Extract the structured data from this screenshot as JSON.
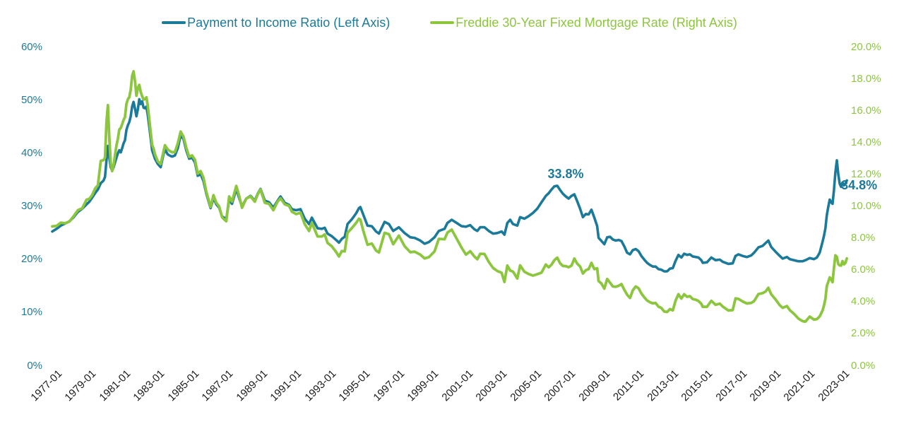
{
  "chart_data": {
    "type": "line",
    "background": "#FFFFFF",
    "grid": false,
    "legend_position": "top",
    "x": [
      "1977-01",
      "1977-04",
      "1977-07",
      "1977-10",
      "1978-01",
      "1978-04",
      "1978-07",
      "1978-10",
      "1979-01",
      "1979-03",
      "1979-05",
      "1979-07",
      "1979-09",
      "1979-11",
      "1980-01",
      "1980-02",
      "1980-03",
      "1980-04",
      "1980-05",
      "1980-06",
      "1980-07",
      "1980-08",
      "1980-09",
      "1980-10",
      "1980-11",
      "1980-12",
      "1981-01",
      "1981-02",
      "1981-03",
      "1981-04",
      "1981-05",
      "1981-06",
      "1981-07",
      "1981-08",
      "1981-09",
      "1981-10",
      "1981-11",
      "1981-12",
      "1982-01",
      "1982-02",
      "1982-03",
      "1982-04",
      "1982-05",
      "1982-06",
      "1982-07",
      "1982-08",
      "1982-09",
      "1982-10",
      "1982-11",
      "1982-12",
      "1983-01",
      "1983-03",
      "1983-05",
      "1983-07",
      "1983-08",
      "1983-10",
      "1983-12",
      "1984-01",
      "1984-03",
      "1984-05",
      "1984-07",
      "1984-09",
      "1984-11",
      "1985-01",
      "1985-03",
      "1985-05",
      "1985-07",
      "1985-09",
      "1985-11",
      "1986-01",
      "1986-04",
      "1986-06",
      "1986-08",
      "1986-10",
      "1986-12",
      "1987-01",
      "1987-03",
      "1987-05",
      "1987-07",
      "1987-10",
      "1987-12",
      "1988-02",
      "1988-05",
      "1988-08",
      "1988-11",
      "1989-01",
      "1989-03",
      "1989-06",
      "1989-09",
      "1989-12",
      "1990-03",
      "1990-05",
      "1990-08",
      "1990-11",
      "1991-01",
      "1991-04",
      "1991-07",
      "1991-10",
      "1992-01",
      "1992-03",
      "1992-07",
      "1992-10",
      "1992-12",
      "1993-02",
      "1993-05",
      "1993-08",
      "1993-10",
      "1993-12",
      "1994-02",
      "1994-04",
      "1994-07",
      "1994-10",
      "1994-12",
      "1995-01",
      "1995-03",
      "1995-06",
      "1995-09",
      "1995-12",
      "1996-02",
      "1996-06",
      "1996-09",
      "1996-12",
      "1997-04",
      "1997-08",
      "1997-12",
      "1998-03",
      "1998-07",
      "1998-10",
      "1999-01",
      "1999-05",
      "1999-08",
      "1999-12",
      "2000-02",
      "2000-05",
      "2000-08",
      "2000-12",
      "2001-03",
      "2001-06",
      "2001-09",
      "2001-11",
      "2002-01",
      "2002-04",
      "2002-07",
      "2002-10",
      "2003-01",
      "2003-04",
      "2003-06",
      "2003-08",
      "2003-10",
      "2003-12",
      "2004-01",
      "2004-03",
      "2004-05",
      "2004-08",
      "2004-11",
      "2005-02",
      "2005-05",
      "2005-08",
      "2005-11",
      "2006-01",
      "2006-03",
      "2006-05",
      "2006-07",
      "2006-09",
      "2006-11",
      "2007-01",
      "2007-03",
      "2007-05",
      "2007-07",
      "2007-09",
      "2007-11",
      "2008-01",
      "2008-03",
      "2008-05",
      "2008-07",
      "2008-09",
      "2008-11",
      "2008-12",
      "2009-02",
      "2009-04",
      "2009-06",
      "2009-08",
      "2009-10",
      "2009-12",
      "2010-02",
      "2010-04",
      "2010-06",
      "2010-08",
      "2010-10",
      "2010-12",
      "2011-02",
      "2011-04",
      "2011-06",
      "2011-08",
      "2011-10",
      "2011-12",
      "2012-02",
      "2012-04",
      "2012-06",
      "2012-08",
      "2012-10",
      "2012-12",
      "2013-02",
      "2013-04",
      "2013-06",
      "2013-08",
      "2013-10",
      "2013-12",
      "2014-02",
      "2014-04",
      "2014-06",
      "2014-08",
      "2014-10",
      "2014-12",
      "2015-01",
      "2015-04",
      "2015-07",
      "2015-10",
      "2016-01",
      "2016-03",
      "2016-07",
      "2016-10",
      "2016-12",
      "2017-02",
      "2017-05",
      "2017-08",
      "2017-11",
      "2018-01",
      "2018-04",
      "2018-07",
      "2018-09",
      "2018-11",
      "2019-01",
      "2019-04",
      "2019-07",
      "2019-09",
      "2019-12",
      "2020-02",
      "2020-05",
      "2020-08",
      "2020-11",
      "2021-01",
      "2021-04",
      "2021-07",
      "2021-09",
      "2021-11",
      "2022-01",
      "2022-02",
      "2022-03",
      "2022-04",
      "2022-05",
      "2022-06",
      "2022-07",
      "2022-08",
      "2022-09",
      "2022-10",
      "2022-11",
      "2022-12",
      "2023-01",
      "2023-02",
      "2023-03",
      "2023-04",
      "2023-05",
      "2023-06"
    ],
    "series": [
      {
        "name": "Payment to Income Ratio (Left Axis)",
        "axis": "left",
        "color": "#1B7A99",
        "values": [
          25.2,
          25.7,
          26.3,
          26.7,
          27.1,
          27.9,
          28.9,
          29.5,
          30.3,
          30.8,
          31.6,
          32.4,
          33.1,
          34.3,
          34.8,
          35.5,
          38.6,
          41.3,
          39.1,
          37.3,
          36.7,
          37.3,
          38.2,
          39.1,
          39.9,
          40.5,
          40.1,
          40.9,
          41.8,
          42.4,
          44.3,
          45.2,
          45.8,
          46.9,
          48.7,
          49.6,
          48.3,
          46.9,
          48.2,
          50.1,
          49.2,
          49.7,
          48.5,
          48.4,
          48.7,
          47.1,
          44.9,
          42.7,
          40.5,
          39.7,
          38.9,
          37.9,
          37.3,
          39.8,
          40.6,
          39.7,
          39.4,
          39.3,
          39.5,
          40.9,
          43.3,
          42.6,
          40.4,
          38.9,
          39.1,
          38.2,
          35.7,
          36.0,
          34.7,
          32.3,
          29.6,
          31.5,
          30.3,
          29.7,
          28.0,
          27.9,
          27.5,
          31.2,
          30.4,
          33.2,
          31.5,
          29.9,
          31.4,
          31.9,
          31.0,
          32.3,
          33.2,
          31.0,
          30.7,
          29.7,
          31.0,
          31.8,
          30.6,
          30.2,
          29.4,
          29.2,
          29.4,
          27.6,
          26.6,
          27.8,
          25.8,
          25.7,
          25.9,
          24.8,
          24.3,
          23.6,
          23.1,
          23.8,
          24.2,
          26.6,
          27.5,
          28.6,
          29.6,
          29.8,
          28.4,
          26.3,
          26.2,
          25.2,
          24.8,
          27.0,
          26.6,
          25.3,
          26.0,
          24.9,
          24.1,
          24.0,
          23.5,
          22.9,
          23.2,
          24.1,
          25.3,
          25.7,
          26.8,
          27.4,
          26.9,
          26.2,
          26.1,
          26.4,
          25.6,
          25.3,
          26.0,
          26.0,
          25.3,
          24.8,
          24.9,
          25.2,
          24.6,
          26.8,
          27.4,
          26.6,
          26.5,
          26.3,
          27.9,
          27.6,
          28.1,
          28.7,
          29.5,
          30.7,
          31.9,
          32.4,
          33.1,
          33.7,
          33.8,
          33.0,
          32.3,
          31.8,
          31.4,
          31.9,
          32.2,
          30.9,
          29.5,
          27.9,
          28.5,
          28.4,
          29.3,
          27.8,
          26.2,
          24.0,
          23.4,
          22.8,
          24.1,
          24.2,
          23.7,
          23.5,
          23.6,
          23.4,
          22.4,
          21.2,
          20.9,
          21.7,
          21.9,
          21.5,
          20.6,
          19.9,
          19.3,
          18.9,
          18.6,
          18.6,
          18.1,
          18.0,
          17.7,
          17.7,
          18.2,
          18.3,
          19.7,
          20.8,
          20.3,
          21.0,
          20.8,
          20.9,
          20.5,
          20.4,
          20.3,
          19.8,
          19.3,
          19.4,
          20.3,
          19.8,
          19.9,
          19.5,
          19.1,
          19.2,
          20.6,
          20.9,
          20.6,
          20.4,
          20.7,
          21.2,
          22.2,
          22.5,
          23.0,
          23.5,
          22.3,
          21.4,
          20.6,
          20.1,
          20.4,
          20.0,
          19.8,
          19.6,
          19.6,
          19.8,
          20.2,
          20.0,
          20.3,
          21.2,
          23.3,
          24.4,
          25.8,
          28.3,
          29.8,
          31.2,
          30.7,
          30.4,
          33.0,
          36.3,
          38.6,
          36.0,
          34.2,
          33.6,
          34.4,
          33.9,
          34.2,
          34.8
        ]
      },
      {
        "name": "Freddie 30-Year Fixed Mortgage Rate (Right Axis)",
        "axis": "right",
        "color": "#8CC63E",
        "values": [
          8.72,
          8.75,
          8.95,
          8.92,
          9.02,
          9.36,
          9.74,
          9.86,
          10.39,
          10.45,
          10.69,
          11.09,
          11.3,
          12.83,
          12.88,
          13.04,
          15.28,
          16.33,
          14.26,
          12.71,
          12.19,
          12.56,
          13.2,
          13.79,
          14.21,
          14.79,
          14.9,
          15.13,
          15.4,
          15.58,
          16.4,
          16.7,
          16.83,
          17.29,
          18.16,
          18.45,
          17.82,
          16.92,
          17.4,
          17.6,
          17.16,
          16.89,
          16.68,
          16.7,
          16.82,
          16.27,
          15.43,
          14.61,
          13.83,
          13.62,
          13.25,
          12.8,
          12.63,
          13.43,
          13.81,
          13.54,
          13.42,
          13.37,
          13.39,
          13.94,
          14.67,
          14.35,
          13.64,
          13.08,
          13.17,
          12.91,
          12.03,
          12.19,
          11.78,
          10.88,
          9.94,
          10.68,
          10.2,
          9.97,
          9.31,
          9.2,
          9.04,
          10.6,
          10.28,
          11.26,
          10.64,
          9.89,
          10.46,
          10.6,
          10.27,
          10.73,
          11.03,
          10.2,
          10.13,
          9.74,
          10.27,
          10.48,
          10.1,
          10.01,
          9.64,
          9.49,
          9.58,
          8.86,
          8.43,
          8.94,
          8.09,
          8.09,
          8.22,
          7.68,
          7.47,
          7.11,
          6.83,
          7.17,
          7.15,
          8.32,
          8.61,
          8.93,
          9.2,
          9.15,
          8.46,
          7.57,
          7.64,
          7.2,
          7.08,
          8.32,
          8.23,
          7.6,
          8.14,
          7.48,
          7.1,
          7.13,
          6.95,
          6.71,
          6.79,
          7.15,
          7.94,
          7.91,
          8.33,
          8.52,
          8.03,
          7.38,
          6.95,
          7.16,
          6.82,
          6.66,
          7.0,
          6.99,
          6.49,
          6.11,
          5.92,
          5.81,
          5.23,
          6.26,
          5.95,
          5.88,
          5.74,
          5.45,
          6.27,
          5.87,
          5.73,
          5.63,
          5.72,
          5.82,
          6.33,
          6.15,
          6.32,
          6.6,
          6.76,
          6.4,
          6.24,
          6.22,
          6.16,
          6.26,
          6.7,
          6.38,
          6.21,
          5.76,
          5.97,
          6.04,
          6.43,
          6.04,
          6.09,
          5.29,
          5.13,
          4.81,
          5.42,
          5.19,
          4.95,
          4.93,
          4.99,
          5.1,
          4.74,
          4.43,
          4.23,
          4.71,
          4.95,
          4.84,
          4.51,
          4.27,
          4.07,
          3.96,
          3.89,
          3.91,
          3.68,
          3.6,
          3.38,
          3.35,
          3.53,
          3.45,
          4.07,
          4.46,
          4.19,
          4.46,
          4.3,
          4.34,
          4.16,
          4.12,
          4.04,
          3.86,
          3.67,
          3.67,
          4.05,
          3.8,
          3.87,
          3.69,
          3.44,
          3.47,
          4.2,
          4.17,
          4.01,
          3.88,
          3.92,
          4.03,
          4.47,
          4.53,
          4.63,
          4.87,
          4.46,
          4.14,
          3.77,
          3.61,
          3.72,
          3.47,
          3.23,
          2.94,
          2.77,
          2.74,
          3.06,
          2.87,
          2.9,
          3.07,
          3.45,
          3.76,
          4.17,
          4.98,
          5.23,
          5.52,
          5.41,
          5.22,
          6.11,
          6.9,
          6.81,
          6.36,
          6.27,
          6.26,
          6.54,
          6.34,
          6.43,
          6.71
        ]
      }
    ],
    "left_axis": {
      "min": 0,
      "max": 60,
      "tick_color": "#1B7A99",
      "ticks": [
        "0%",
        "10%",
        "20%",
        "30%",
        "40%",
        "50%",
        "60%"
      ]
    },
    "right_axis": {
      "min": 0,
      "max": 20,
      "tick_color": "#8CC63E",
      "ticks": [
        "0.0%",
        "2.0%",
        "4.0%",
        "6.0%",
        "8.0%",
        "10.0%",
        "12.0%",
        "14.0%",
        "16.0%",
        "18.0%",
        "20.0%"
      ]
    },
    "x_axis": {
      "tick_color": "#1A1A1A",
      "ticks": [
        "1977-01",
        "1979-01",
        "1981-01",
        "1983-01",
        "1985-01",
        "1987-01",
        "1989-01",
        "1991-01",
        "1993-01",
        "1995-01",
        "1997-01",
        "1999-01",
        "2001-01",
        "2003-01",
        "2005-01",
        "2007-01",
        "2009-01",
        "2011-01",
        "2013-01",
        "2015-01",
        "2017-01",
        "2019-01",
        "2021-01",
        "2023-01"
      ]
    },
    "annotations": [
      {
        "text": "33.8%",
        "date": "2006-07",
        "value": 33.8,
        "axis": "left",
        "color": "#1B7A99"
      },
      {
        "text": "34.8%",
        "date": "2023-06",
        "value": 34.8,
        "axis": "left",
        "color": "#1B7A99"
      }
    ]
  }
}
